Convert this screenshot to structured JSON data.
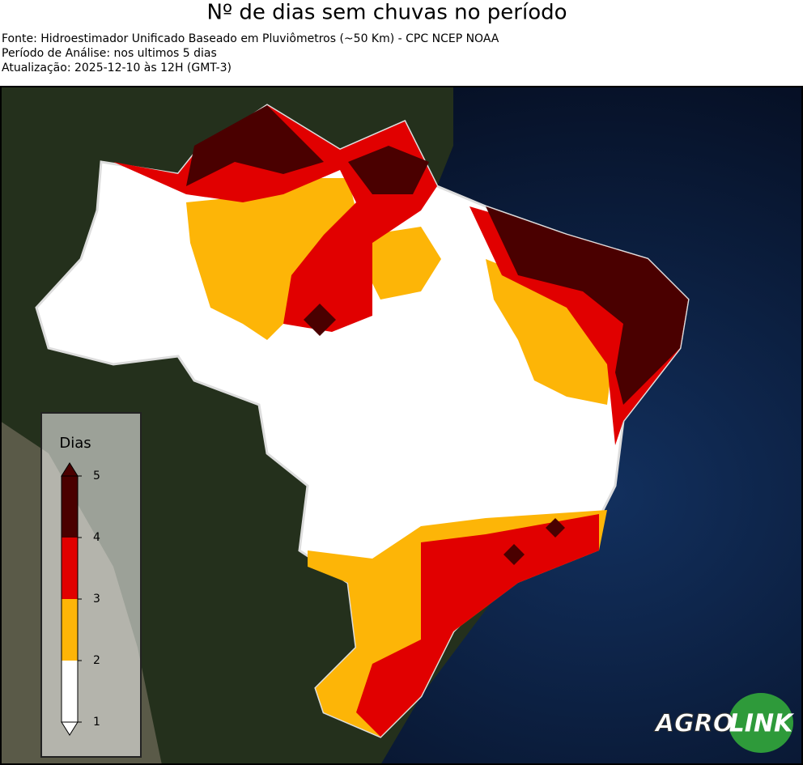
{
  "header": {
    "title": "Nº de dias sem chuvas no período",
    "lines": [
      "Fonte: Hidroestimador Unificado Baseado em Pluviômetros (~50 Km) - CPC NCEP NOAA",
      "Período de Análise: nos ultimos 5 dias",
      "Atualização: 2025-12-10 às 12H (GMT-3)"
    ]
  },
  "legend": {
    "title": "Dias",
    "ticks": [
      1,
      2,
      3,
      4,
      5
    ],
    "colors": [
      "#ffffff",
      "#fdb507",
      "#e10000",
      "#4a0000"
    ]
  },
  "logo": {
    "left": "AGRO",
    "right": "LINK"
  }
}
